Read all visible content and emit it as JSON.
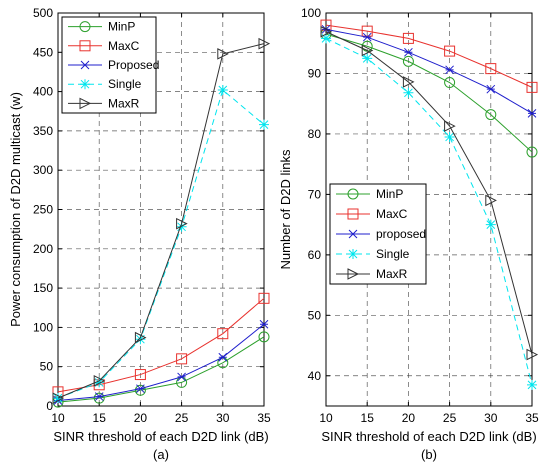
{
  "chart_data": [
    {
      "type": "line",
      "caption": "(a)",
      "xlabel": "SINR threshold of each D2D link (dB)",
      "ylabel": "Power consumption of D2D multicast (w)",
      "x": [
        10,
        15,
        20,
        25,
        30,
        35
      ],
      "xticks": [
        "10",
        "15",
        "20",
        "25",
        "30",
        "35"
      ],
      "yticks": [
        "0",
        "50",
        "100",
        "150",
        "200",
        "250",
        "300",
        "350",
        "400",
        "450",
        "500"
      ],
      "xlim": [
        10,
        35
      ],
      "ylim": [
        0,
        500
      ],
      "grid": true,
      "legend_position": "top-left",
      "series": [
        {
          "name": "MinP",
          "color": "#2ca02c",
          "marker": "circle",
          "dash": "solid",
          "values": [
            5,
            10,
            20,
            30,
            55,
            88
          ]
        },
        {
          "name": "MaxC",
          "color": "#e8322e",
          "marker": "square",
          "dash": "solid",
          "values": [
            18,
            27,
            40,
            60,
            92,
            137
          ]
        },
        {
          "name": "Proposed",
          "color": "#1f1fcc",
          "marker": "star",
          "dash": "solid",
          "values": [
            7,
            12,
            22,
            37,
            62,
            104
          ]
        },
        {
          "name": "Single",
          "color": "#00e5ee",
          "marker": "asterisk",
          "dash": "dashed",
          "values": [
            10,
            30,
            85,
            228,
            402,
            358
          ]
        },
        {
          "name": "MaxR",
          "color": "#333333",
          "marker": "triangle-right",
          "dash": "solid",
          "values": [
            10,
            32,
            87,
            232,
            448,
            461
          ]
        }
      ]
    },
    {
      "type": "line",
      "caption": "(b)",
      "xlabel": "SINR threshold of each D2D link (dB)",
      "ylabel": "Number of D2D links",
      "x": [
        10,
        15,
        20,
        25,
        30,
        35
      ],
      "xticks": [
        "10",
        "15",
        "20",
        "25",
        "30",
        "35"
      ],
      "yticks": [
        "40",
        "50",
        "60",
        "70",
        "80",
        "90",
        "100"
      ],
      "xlim": [
        10,
        35
      ],
      "ylim": [
        35,
        100
      ],
      "grid": true,
      "legend_position": "bottom-left",
      "series": [
        {
          "name": "MinP",
          "color": "#2ca02c",
          "marker": "circle",
          "dash": "solid",
          "values": [
            96.5,
            94.5,
            92.0,
            88.5,
            83.2,
            77.0
          ]
        },
        {
          "name": "MaxC",
          "color": "#e8322e",
          "marker": "square",
          "dash": "solid",
          "values": [
            98.0,
            97.0,
            95.8,
            93.7,
            90.8,
            87.7
          ]
        },
        {
          "name": "proposed",
          "color": "#1f1fcc",
          "marker": "star",
          "dash": "solid",
          "values": [
            97.3,
            96.0,
            93.5,
            90.6,
            87.4,
            83.4
          ]
        },
        {
          "name": "Single",
          "color": "#00e5ee",
          "marker": "asterisk",
          "dash": "dashed",
          "values": [
            95.8,
            92.5,
            86.8,
            79.5,
            65.0,
            38.5
          ]
        },
        {
          "name": "MaxR",
          "color": "#333333",
          "marker": "triangle-right",
          "dash": "solid",
          "values": [
            96.9,
            93.8,
            88.6,
            81.3,
            69.0,
            43.5
          ]
        }
      ]
    }
  ]
}
